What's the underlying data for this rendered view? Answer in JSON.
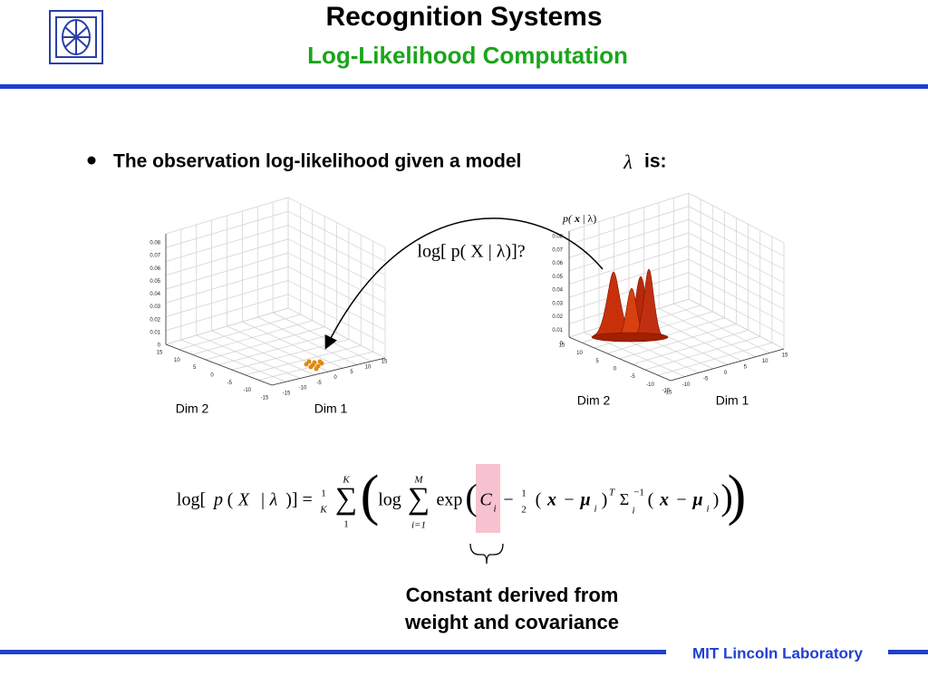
{
  "header": {
    "title": "Recognition Systems",
    "subtitle": "Log-Likelihood Computation"
  },
  "bullet": {
    "text": "The observation log-likelihood given a model",
    "symbol": "λ",
    "tail": "is:"
  },
  "plots": [
    {
      "zticks": [
        0,
        0.01,
        0.02,
        0.03,
        0.04,
        0.05,
        0.06,
        0.07,
        0.08
      ],
      "yticks": [
        15,
        10,
        5,
        0,
        -5,
        -10,
        -15
      ],
      "xticks": [
        -15,
        -10,
        -5,
        0,
        5,
        10,
        15
      ],
      "ylabel": "Dim 2",
      "xlabel": "Dim 1"
    },
    {
      "zticks": [
        0,
        0.01,
        0.02,
        0.03,
        0.04,
        0.05,
        0.06,
        0.07,
        0.08
      ],
      "yticks": [
        15,
        10,
        5,
        0,
        -5,
        -10,
        -15
      ],
      "xticks": [
        -15,
        -10,
        -5,
        0,
        5,
        10,
        15
      ],
      "ylabel": "Dim 2",
      "xlabel": "Dim 1"
    }
  ],
  "annotations": {
    "question": "log[ p( X | λ)]?",
    "density": [
      "p(",
      "x",
      "| λ)"
    ]
  },
  "formula": {
    "parts": [
      "log[",
      "p",
      "(",
      "X",
      "|",
      "λ",
      ")] =",
      "1",
      "K",
      "K",
      "∑",
      "1",
      "(",
      "log",
      "M",
      "∑",
      "i=1",
      "exp",
      "(",
      "C",
      "i",
      "−",
      "1",
      "2",
      "(",
      "x",
      "−",
      "μ",
      "i",
      ")",
      "T",
      "Σ",
      "−1",
      "i",
      "(",
      "x",
      "−",
      "μ",
      "i",
      ")",
      ")",
      ")"
    ]
  },
  "caption": [
    "Constant derived from",
    "weight and covariance"
  ],
  "footer": {
    "lab": "MIT Lincoln Laboratory"
  }
}
